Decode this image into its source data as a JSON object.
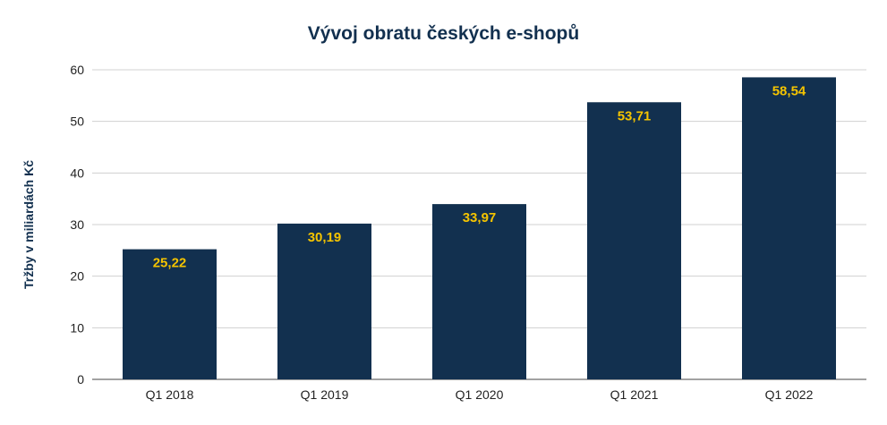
{
  "chart_data": {
    "type": "bar",
    "title": "Vývoj obratu českých e-shopů",
    "xlabel": "",
    "ylabel": "Tržby v miliardách Kč",
    "categories": [
      "Q1 2018",
      "Q1 2019",
      "Q1 2020",
      "Q1 2021",
      "Q1 2022"
    ],
    "values": [
      25.22,
      30.19,
      33.97,
      53.71,
      58.54
    ],
    "data_labels": [
      "25,22",
      "30,19",
      "33,97",
      "53,71",
      "58,54"
    ],
    "yticks": [
      "0",
      "10",
      "20",
      "30",
      "40",
      "50",
      "60"
    ],
    "ylim": [
      0,
      60
    ],
    "grid": true,
    "legend": "none",
    "colors": {
      "bar": "#12304f",
      "label": "#f5c400",
      "grid": "#d0d0d0",
      "title": "#12304f"
    }
  }
}
